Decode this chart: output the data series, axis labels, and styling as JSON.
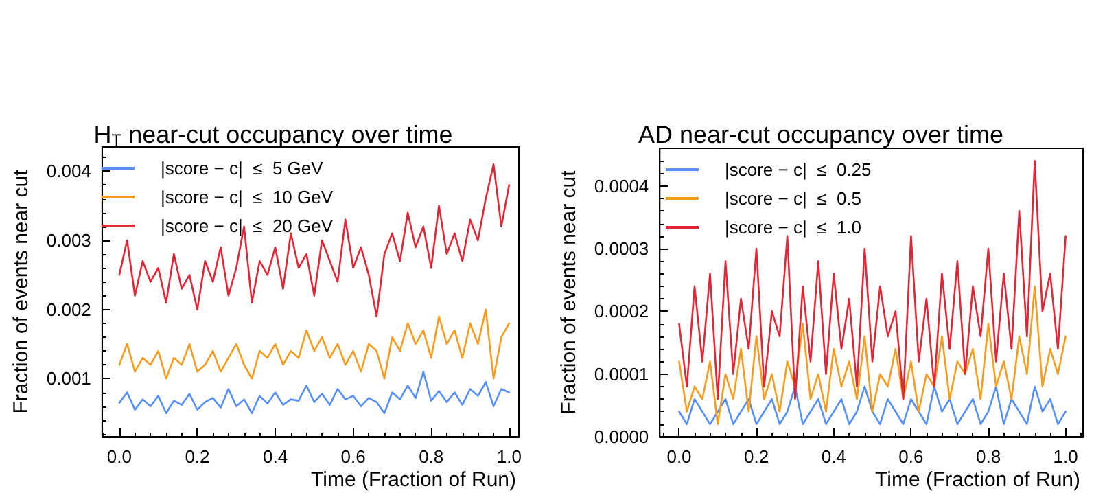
{
  "chart_data": [
    {
      "type": "line",
      "title": "H$_{T}$ near-cut occupancy over time",
      "xlabel": "Time (Fraction of Run)",
      "ylabel": "Fraction of events near cut",
      "legend": "top left",
      "grid": false,
      "marker": "none",
      "line_style": "solid",
      "xlim": [
        -0.044,
        1.025
      ],
      "xticks": [
        {
          "value": 0,
          "label": "0.0"
        },
        {
          "value": 0.2,
          "label": "0.2"
        },
        {
          "value": 0.4,
          "label": "0.4"
        },
        {
          "value": 0.6,
          "label": "0.6"
        },
        {
          "value": 0.8,
          "label": "0.8"
        },
        {
          "value": 1,
          "label": "1.0"
        }
      ],
      "ylim": [
        0.00016,
        0.00435
      ],
      "yticks": [
        0.001,
        0.002,
        0.003,
        0.004
      ],
      "x": [
        0,
        0.02,
        0.04,
        0.06,
        0.08,
        0.1,
        0.12,
        0.14,
        0.16,
        0.18,
        0.2,
        0.22,
        0.24,
        0.26,
        0.28,
        0.3,
        0.32,
        0.34,
        0.36,
        0.38,
        0.4,
        0.42,
        0.44,
        0.46,
        0.48,
        0.5,
        0.52,
        0.54,
        0.56,
        0.58,
        0.6,
        0.62,
        0.64,
        0.66,
        0.68,
        0.7,
        0.72,
        0.74,
        0.76,
        0.78,
        0.8,
        0.82,
        0.84,
        0.86,
        0.88,
        0.9,
        0.92,
        0.94,
        0.96,
        0.98,
        1.0
      ],
      "series": [
        {
          "name": "|score − c|  ≤  5 GeV",
          "color": "#5790fc",
          "values": [
            0.00065,
            0.0008,
            0.00055,
            0.0007,
            0.0006,
            0.00075,
            0.0005,
            0.00068,
            0.00062,
            0.00078,
            0.00055,
            0.00066,
            0.00072,
            0.00058,
            0.00085,
            0.0006,
            0.0007,
            0.0005,
            0.00075,
            0.00064,
            0.0008,
            0.00062,
            0.0007,
            0.00068,
            0.0009,
            0.00066,
            0.00078,
            0.00062,
            0.00085,
            0.0007,
            0.00075,
            0.0006,
            0.00072,
            0.00066,
            0.0005,
            0.0008,
            0.0007,
            0.0009,
            0.00072,
            0.0011,
            0.00068,
            0.00082,
            0.00066,
            0.0008,
            0.00062,
            0.00085,
            0.00075,
            0.00095,
            0.0006,
            0.00085,
            0.0008
          ]
        },
        {
          "name": "|score − c|  ≤  10 GeV",
          "color": "#f89c20",
          "values": [
            0.0012,
            0.0015,
            0.0011,
            0.0013,
            0.0012,
            0.0014,
            0.001,
            0.0013,
            0.0012,
            0.0015,
            0.0011,
            0.0012,
            0.0014,
            0.0011,
            0.0013,
            0.0015,
            0.0012,
            0.001,
            0.0014,
            0.0013,
            0.0015,
            0.0012,
            0.0014,
            0.0013,
            0.0017,
            0.0014,
            0.0016,
            0.0013,
            0.0015,
            0.0012,
            0.0014,
            0.0011,
            0.0015,
            0.0014,
            0.001,
            0.0016,
            0.0014,
            0.0018,
            0.0015,
            0.0017,
            0.0013,
            0.0019,
            0.0015,
            0.0017,
            0.0013,
            0.0018,
            0.0015,
            0.002,
            0.001,
            0.0016,
            0.0018
          ]
        },
        {
          "name": "|score − c|  ≤  20 GeV",
          "color": "#e42536",
          "values": [
            0.0025,
            0.003,
            0.0022,
            0.0027,
            0.0024,
            0.0026,
            0.0021,
            0.0028,
            0.0023,
            0.0025,
            0.002,
            0.0027,
            0.0024,
            0.0029,
            0.0022,
            0.0026,
            0.0032,
            0.0021,
            0.0027,
            0.0025,
            0.0029,
            0.0023,
            0.0031,
            0.0026,
            0.0028,
            0.0022,
            0.003,
            0.0027,
            0.0024,
            0.0033,
            0.0026,
            0.0029,
            0.0025,
            0.0019,
            0.0028,
            0.0031,
            0.0027,
            0.0034,
            0.0029,
            0.0032,
            0.0026,
            0.0035,
            0.0028,
            0.0031,
            0.0027,
            0.0033,
            0.003,
            0.0036,
            0.0041,
            0.0032,
            0.0038
          ]
        }
      ]
    },
    {
      "type": "line",
      "title": "AD near-cut occupancy over time",
      "xlabel": "Time (Fraction of Run)",
      "ylabel": "Fraction of events near cut",
      "legend": "top left",
      "grid": false,
      "marker": "none",
      "line_style": "solid",
      "xlim": [
        -0.05,
        1.045
      ],
      "xticks": [
        {
          "value": 0,
          "label": "0.0"
        },
        {
          "value": 0.2,
          "label": "0.2"
        },
        {
          "value": 0.4,
          "label": "0.4"
        },
        {
          "value": 0.6,
          "label": "0.6"
        },
        {
          "value": 0.8,
          "label": "0.8"
        },
        {
          "value": 1,
          "label": "1.0"
        }
      ],
      "ylim": [
        0,
        0.00046
      ],
      "yticks": [
        {
          "value": 0,
          "label": "0.0000"
        },
        {
          "value": 0.0001,
          "label": "0.0001"
        },
        {
          "value": 0.0002,
          "label": "0.0002"
        },
        {
          "value": 0.0003,
          "label": "0.0003"
        },
        {
          "value": 0.0004,
          "label": "0.0004"
        }
      ],
      "x": [
        0,
        0.02,
        0.04,
        0.06,
        0.08,
        0.1,
        0.12,
        0.14,
        0.16,
        0.18,
        0.2,
        0.22,
        0.24,
        0.26,
        0.28,
        0.3,
        0.32,
        0.34,
        0.36,
        0.38,
        0.4,
        0.42,
        0.44,
        0.46,
        0.48,
        0.5,
        0.52,
        0.54,
        0.56,
        0.58,
        0.6,
        0.62,
        0.64,
        0.66,
        0.68,
        0.7,
        0.72,
        0.74,
        0.76,
        0.78,
        0.8,
        0.82,
        0.84,
        0.86,
        0.88,
        0.9,
        0.92,
        0.94,
        0.96,
        0.98,
        1.0
      ],
      "series": [
        {
          "name": "|score − c|  ≤  0.25",
          "color": "#5790fc",
          "values": [
            4e-05,
            2e-05,
            6e-05,
            4e-05,
            2e-05,
            4e-05,
            6e-05,
            2e-05,
            4e-05,
            6e-05,
            2e-05,
            4e-05,
            6e-05,
            2e-05,
            4e-05,
            8e-05,
            2e-05,
            4e-05,
            6e-05,
            2e-05,
            4e-05,
            6e-05,
            2e-05,
            4e-05,
            8e-05,
            4e-05,
            2e-05,
            6e-05,
            4e-05,
            2e-05,
            6e-05,
            4e-05,
            2e-05,
            8e-05,
            4e-05,
            6e-05,
            2e-05,
            4e-05,
            6e-05,
            2e-05,
            4e-05,
            8e-05,
            2e-05,
            6e-05,
            4e-05,
            2e-05,
            8e-05,
            4e-05,
            6e-05,
            2e-05,
            4e-05
          ]
        },
        {
          "name": "|score − c|  ≤  0.5",
          "color": "#f89c20",
          "values": [
            0.00012,
            4e-05,
            8e-05,
            6e-05,
            0.00012,
            2e-05,
            0.0001,
            6e-05,
            0.00014,
            4e-05,
            0.00016,
            6e-05,
            0.0001,
            4e-05,
            0.00012,
            8e-05,
            0.00018,
            6e-05,
            0.0001,
            4e-05,
            0.00014,
            8e-05,
            0.00012,
            6e-05,
            0.00016,
            4e-05,
            0.0001,
            8e-05,
            0.00014,
            6e-05,
            0.00012,
            4e-05,
            0.0001,
            8e-05,
            0.00016,
            6e-05,
            0.00012,
            0.0001,
            0.00014,
            6e-05,
            0.00018,
            8e-05,
            0.00012,
            6e-05,
            0.00016,
            0.0001,
            0.00024,
            8e-05,
            0.00014,
            0.0001,
            0.00016
          ]
        },
        {
          "name": "|score − c|  ≤  1.0",
          "color": "#e42536",
          "values": [
            0.00018,
            8e-05,
            0.00024,
            0.00012,
            0.00026,
            6e-05,
            0.00028,
            0.0001,
            0.00022,
            0.00014,
            0.0003,
            8e-05,
            0.0002,
            0.00016,
            0.00032,
            6e-05,
            0.00024,
            0.00012,
            0.00028,
            0.0001,
            0.00026,
            0.00014,
            0.00022,
            8e-05,
            0.0003,
            0.00012,
            0.00024,
            0.00016,
            0.0002,
            6e-05,
            0.00032,
            0.00012,
            0.00022,
            8e-05,
            0.00026,
            0.00014,
            0.00028,
            0.0001,
            0.00024,
            0.00016,
            0.0003,
            0.00012,
            0.00026,
            0.00014,
            0.00036,
            0.00016,
            0.00044,
            0.0002,
            0.00026,
            0.00014,
            0.00032
          ]
        }
      ]
    }
  ]
}
